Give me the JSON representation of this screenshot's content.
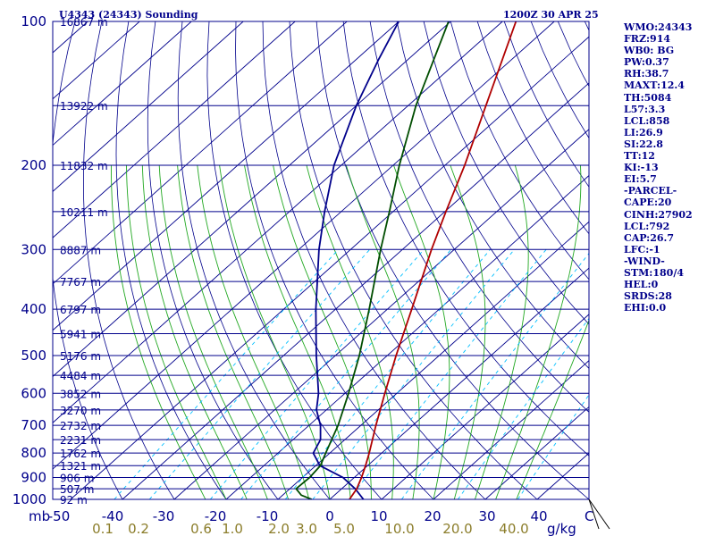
{
  "header": {
    "station": "U4343 (24343) Sounding",
    "time": "1200Z 30 APR 25"
  },
  "indices": [
    "WMO:24343",
    "FRZ:914",
    "WB0: BG",
    "PW:0.37",
    "RH:38.7",
    "MAXT:12.4",
    "TH:5084",
    "L57:3.3",
    "LCL:858",
    "LI:26.9",
    "SI:22.8",
    "TT:12",
    "KI:-13",
    "EI:5.7",
    "-PARCEL-",
    "CAPE:20",
    "CINH:27902",
    "LCL:792",
    "CAP:26.7",
    "LFC:-1",
    "-WIND-",
    "STM:180/4",
    "HEL:0",
    "SRDS:28",
    "EHI:0.0"
  ],
  "colors": {
    "isobar": "#00008b",
    "dry_adiabat": "#00008b",
    "moist_adiabat": "#22a822",
    "mixing_ratio": "#00bfff",
    "profile_a": "#00008b",
    "profile_b": "#004d00",
    "profile_c": "#b00000",
    "text": "#00008b"
  },
  "chart_data": {
    "type": "line",
    "chart_kind": "skew-T log-P sounding diagram",
    "x_axis": {
      "unit_label": "C",
      "ticks": [
        "-50",
        "-40",
        "-30",
        "-20",
        "-10",
        "0",
        "10",
        "20",
        "30",
        "40"
      ],
      "range": [
        -50,
        50
      ]
    },
    "y_axis": {
      "unit_label": "mb",
      "scale": "log",
      "ticks": [
        "100",
        "200",
        "300",
        "400",
        "500",
        "600",
        "700",
        "800",
        "900",
        "1000"
      ],
      "range": [
        1000,
        100
      ]
    },
    "mixing_ratio_axis": {
      "unit_label": "g/kg",
      "ticks": [
        "0.1",
        "0.2",
        "0.6",
        "1.0",
        "2.0",
        "3.0",
        "5.0",
        "10.0",
        "20.0",
        "40.0"
      ]
    },
    "height_labels": [
      {
        "p": 100,
        "label": "16867 m"
      },
      {
        "p": 150,
        "label": "13922 m"
      },
      {
        "p": 200,
        "label": "11832 m"
      },
      {
        "p": 250,
        "label": "10211 m"
      },
      {
        "p": 300,
        "label": "8887 m"
      },
      {
        "p": 350,
        "label": "7767 m"
      },
      {
        "p": 400,
        "label": "6797 m"
      },
      {
        "p": 450,
        "label": "5941 m"
      },
      {
        "p": 500,
        "label": "5176 m"
      },
      {
        "p": 550,
        "label": "4484 m"
      },
      {
        "p": 600,
        "label": "3852 m"
      },
      {
        "p": 650,
        "label": "3270 m"
      },
      {
        "p": 700,
        "label": "2732 m"
      },
      {
        "p": 750,
        "label": "2231 m"
      },
      {
        "p": 800,
        "label": "1762 m"
      },
      {
        "p": 850,
        "label": "1321 m"
      },
      {
        "p": 900,
        "label": "906 m"
      },
      {
        "p": 950,
        "label": "507 m"
      },
      {
        "p": 1000,
        "label": "92 m"
      }
    ],
    "series": [
      {
        "color_key": "profile_a",
        "points": [
          {
            "p": 1000,
            "t": 6.5
          },
          {
            "p": 950,
            "t": 2.6
          },
          {
            "p": 900,
            "t": -2.2
          },
          {
            "p": 850,
            "t": -9.2
          },
          {
            "p": 800,
            "t": -13.2
          },
          {
            "p": 750,
            "t": -14.7
          },
          {
            "p": 700,
            "t": -17.8
          },
          {
            "p": 650,
            "t": -21.9
          },
          {
            "p": 600,
            "t": -25.1
          },
          {
            "p": 500,
            "t": -33.7
          },
          {
            "p": 400,
            "t": -43.8
          },
          {
            "p": 300,
            "t": -56.1
          },
          {
            "p": 250,
            "t": -63.2
          },
          {
            "p": 200,
            "t": -71.4
          },
          {
            "p": 150,
            "t": -80.0
          },
          {
            "p": 120,
            "t": -85.7
          },
          {
            "p": 100,
            "t": -90.0
          }
        ]
      },
      {
        "color_key": "profile_b",
        "points": [
          {
            "p": 1000,
            "t": -3.5
          },
          {
            "p": 980,
            "t": -6.4
          },
          {
            "p": 950,
            "t": -8.8
          },
          {
            "p": 900,
            "t": -8.6
          },
          {
            "p": 850,
            "t": -9.1
          },
          {
            "p": 800,
            "t": -10.8
          },
          {
            "p": 700,
            "t": -14.4
          },
          {
            "p": 600,
            "t": -19.3
          },
          {
            "p": 500,
            "t": -25.4
          },
          {
            "p": 400,
            "t": -33.5
          },
          {
            "p": 300,
            "t": -44.2
          },
          {
            "p": 250,
            "t": -50.7
          },
          {
            "p": 200,
            "t": -58.8
          },
          {
            "p": 150,
            "t": -68.5
          },
          {
            "p": 100,
            "t": -80.4
          }
        ]
      },
      {
        "color_key": "profile_c",
        "points": [
          {
            "p": 1000,
            "t": 3.8
          },
          {
            "p": 950,
            "t": 2.9
          },
          {
            "p": 900,
            "t": 1.4
          },
          {
            "p": 850,
            "t": -0.4
          },
          {
            "p": 800,
            "t": -2.4
          },
          {
            "p": 700,
            "t": -7.1
          },
          {
            "p": 600,
            "t": -12.3
          },
          {
            "p": 500,
            "t": -18.3
          },
          {
            "p": 400,
            "t": -25.3
          },
          {
            "p": 300,
            "t": -34.4
          },
          {
            "p": 250,
            "t": -39.8
          },
          {
            "p": 200,
            "t": -46.2
          },
          {
            "p": 150,
            "t": -55.0
          },
          {
            "p": 100,
            "t": -67.4
          }
        ]
      }
    ]
  }
}
